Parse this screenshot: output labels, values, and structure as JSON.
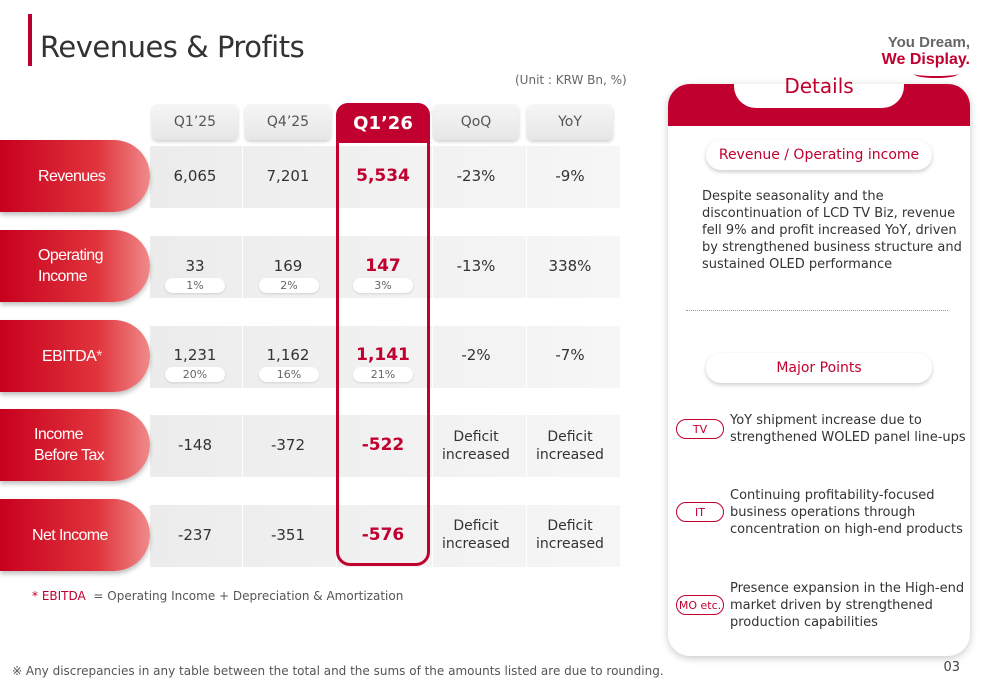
{
  "page": {
    "title": "Revenues & Profits",
    "unit": "(Unit : KRW Bn, %)",
    "page_number": "03"
  },
  "brand": {
    "line1": "You Dream,",
    "line2": "We Display."
  },
  "table": {
    "headers": [
      "Q1’25",
      "Q4’25",
      "Q1’26",
      "QoQ",
      "YoY"
    ],
    "rows": [
      {
        "label": "Revenues",
        "q1_25": "6,065",
        "q4_25": "7,201",
        "q1_26": "5,534",
        "qoq": "-23%",
        "yoy": "-9%"
      },
      {
        "label": "Operating Income",
        "q1_25": "33",
        "q4_25": "169",
        "q1_26": "147",
        "qoq": "-13%",
        "yoy": "338%",
        "margin_q1_25": "1%",
        "margin_q4_25": "2%",
        "margin_q1_26": "3%"
      },
      {
        "label": "EBITDA",
        "asterisk": "*",
        "q1_25": "1,231",
        "q4_25": "1,162",
        "q1_26": "1,141",
        "qoq": "-2%",
        "yoy": "-7%",
        "margin_q1_25": "20%",
        "margin_q4_25": "16%",
        "margin_q1_26": "21%"
      },
      {
        "label": "Income Before Tax",
        "q1_25": "-148",
        "q4_25": "-372",
        "q1_26": "-522",
        "qoq": "Deficit increased",
        "yoy": "Deficit increased"
      },
      {
        "label": "Net Income",
        "q1_25": "-237",
        "q4_25": "-351",
        "q1_26": "-576",
        "qoq": "Deficit increased",
        "yoy": "Deficit increased"
      }
    ]
  },
  "footnote": {
    "marker": "* EBITDA",
    "text": "=  Operating Income + Depreciation & Amortization"
  },
  "disclaimer": "※ Any discrepancies in any table between the total and the sums of the amounts listed are due to rounding.",
  "details": {
    "title": "Details",
    "section1": "Revenue / Operating income",
    "paragraph": "Despite seasonality and the discontinuation of LCD TV Biz, revenue fell 9% and profit increased YoY, driven by strengthened business structure and sustained OLED performance",
    "section2": "Major Points",
    "points": [
      {
        "tag": "TV",
        "text": "YoY shipment increase due to strengthened WOLED panel line-ups"
      },
      {
        "tag": "IT",
        "text": "Continuing profitability-focused business operations through concentration on high-end products"
      },
      {
        "tag": "MO etc.",
        "text": "Presence expansion in the High-end market driven by strengthened production capabilities"
      }
    ]
  },
  "colors": {
    "accent": "#c0002f",
    "label_gradient_start": "#c8001e",
    "row_bg": "#ececec"
  }
}
